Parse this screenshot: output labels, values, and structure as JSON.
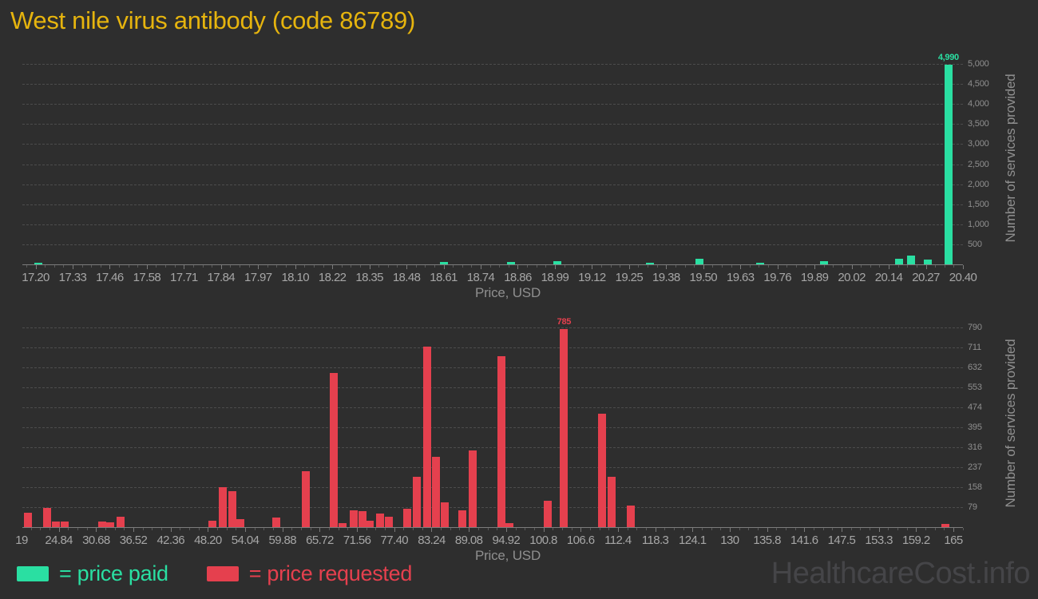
{
  "page": {
    "title": "West nile virus antibody (code 86789)",
    "watermark": "HealthcareCost.info"
  },
  "colors": {
    "background": "#2e2e2e",
    "title": "#e6b40e",
    "paid": "#2adfa2",
    "requested": "#e5404e",
    "grid": "#4c4c4c",
    "tick_text": "#a6a6a6",
    "axis_text": "#8f8f8f",
    "watermark": "#454548"
  },
  "legend": {
    "items": [
      {
        "key": "price-paid",
        "label": "= price paid",
        "color": "#2adfa2"
      },
      {
        "key": "price-requested",
        "label": "= price requested",
        "color": "#e5404e"
      }
    ]
  },
  "chart_data": [
    {
      "type": "bar",
      "series_name": "price paid",
      "color": "#2adfa2",
      "xlabel": "Price, USD",
      "ylabel": "Number of services provided",
      "x_min": 17.2,
      "x_max": 20.4,
      "x_ticks": [
        "17.20",
        "17.33",
        "17.46",
        "17.58",
        "17.71",
        "17.84",
        "17.97",
        "18.10",
        "18.22",
        "18.35",
        "18.48",
        "18.61",
        "18.74",
        "18.86",
        "18.99",
        "19.12",
        "19.25",
        "19.38",
        "19.50",
        "19.63",
        "19.76",
        "19.89",
        "20.02",
        "20.14",
        "20.27",
        "20.40"
      ],
      "y_ticks": [
        500,
        1000,
        1500,
        2000,
        2500,
        3000,
        3500,
        4000,
        4500,
        5000
      ],
      "y_tick_labels": [
        "500",
        "1,000",
        "1,500",
        "2,000",
        "2,500",
        "3,000",
        "3,500",
        "4,000",
        "4,500",
        "5,000"
      ],
      "ylim": [
        0,
        5300
      ],
      "grid": true,
      "points": [
        {
          "price": 17.21,
          "count": 40
        },
        {
          "price": 18.61,
          "count": 55
        },
        {
          "price": 18.84,
          "count": 55
        },
        {
          "price": 19.0,
          "count": 70
        },
        {
          "price": 19.32,
          "count": 40
        },
        {
          "price": 19.49,
          "count": 135
        },
        {
          "price": 19.7,
          "count": 40
        },
        {
          "price": 19.92,
          "count": 70
        },
        {
          "price": 20.18,
          "count": 140
        },
        {
          "price": 20.22,
          "count": 220
        },
        {
          "price": 20.28,
          "count": 125
        },
        {
          "price": 20.35,
          "count": 4990,
          "label": "4,990"
        }
      ]
    },
    {
      "type": "bar",
      "series_name": "price requested",
      "color": "#e5404e",
      "xlabel": "Price, USD",
      "ylabel": "Number of services provided",
      "x_min": 19,
      "x_max": 165,
      "x_ticks": [
        "19",
        "24.84",
        "30.68",
        "36.52",
        "42.36",
        "48.20",
        "54.04",
        "59.88",
        "65.72",
        "71.56",
        "77.40",
        "83.24",
        "89.08",
        "94.92",
        "100.8",
        "106.6",
        "112.4",
        "118.3",
        "124.1",
        "130",
        "135.8",
        "141.6",
        "147.5",
        "153.3",
        "159.2",
        "165"
      ],
      "y_ticks": [
        79,
        158,
        237,
        316,
        395,
        474,
        553,
        632,
        711,
        790
      ],
      "y_tick_labels": [
        "79",
        "158",
        "237",
        "316",
        "395",
        "474",
        "553",
        "632",
        "711",
        "790"
      ],
      "ylim": [
        0,
        822
      ],
      "grid": true,
      "points": [
        {
          "price": 20.0,
          "count": 57
        },
        {
          "price": 23.0,
          "count": 76
        },
        {
          "price": 24.4,
          "count": 21
        },
        {
          "price": 25.8,
          "count": 22
        },
        {
          "price": 31.6,
          "count": 22
        },
        {
          "price": 32.9,
          "count": 19
        },
        {
          "price": 34.5,
          "count": 41
        },
        {
          "price": 48.9,
          "count": 25
        },
        {
          "price": 50.5,
          "count": 158
        },
        {
          "price": 52.0,
          "count": 142
        },
        {
          "price": 53.3,
          "count": 32
        },
        {
          "price": 58.9,
          "count": 38
        },
        {
          "price": 63.5,
          "count": 220
        },
        {
          "price": 67.9,
          "count": 610
        },
        {
          "price": 69.3,
          "count": 16
        },
        {
          "price": 71.0,
          "count": 66
        },
        {
          "price": 72.4,
          "count": 63
        },
        {
          "price": 73.6,
          "count": 25
        },
        {
          "price": 75.2,
          "count": 54
        },
        {
          "price": 76.6,
          "count": 41
        },
        {
          "price": 79.4,
          "count": 73
        },
        {
          "price": 80.9,
          "count": 199
        },
        {
          "price": 82.6,
          "count": 715
        },
        {
          "price": 83.9,
          "count": 278
        },
        {
          "price": 85.3,
          "count": 98
        },
        {
          "price": 88.1,
          "count": 66
        },
        {
          "price": 89.7,
          "count": 303
        },
        {
          "price": 94.2,
          "count": 676
        },
        {
          "price": 95.4,
          "count": 16
        },
        {
          "price": 101.4,
          "count": 104
        },
        {
          "price": 104.0,
          "count": 785,
          "label": "785"
        },
        {
          "price": 109.9,
          "count": 449
        },
        {
          "price": 111.5,
          "count": 199
        },
        {
          "price": 114.4,
          "count": 85
        },
        {
          "price": 163.8,
          "count": 13
        }
      ]
    }
  ]
}
